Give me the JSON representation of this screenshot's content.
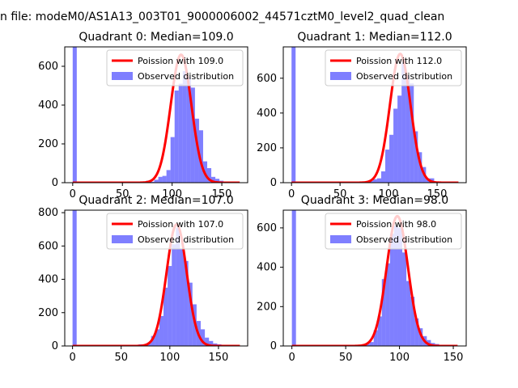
{
  "figure": {
    "suptitle": "n file: modeM0/AS1A13_003T01_9000006002_44571cztM0_level2_quad_clean"
  },
  "colors": {
    "bars": "#0000ff",
    "bars_opacity": 0.5,
    "poisson": "#ff0000"
  },
  "chart_data": [
    {
      "type": "bar",
      "title": "Quadrant 0: Median=109.0",
      "xlabel": "",
      "ylabel": "",
      "xlim": [
        -8.0,
        176.0
      ],
      "ylim": [
        0,
        700
      ],
      "xticks": [
        0,
        50,
        100,
        150
      ],
      "yticks": [
        0,
        200,
        400,
        600
      ],
      "legend_position": "top-right",
      "bin_width": 4.1,
      "series": [
        {
          "name": "Observed distribution",
          "bins": [
            0,
            4.1,
            8.2,
            12.3,
            16.4,
            20.5,
            24.6,
            28.7,
            32.8,
            36.9,
            41.0,
            45.1,
            49.2,
            53.3,
            57.4,
            61.5,
            65.6,
            69.7,
            73.8,
            77.9,
            82.0,
            86.1,
            90.2,
            94.3,
            98.4,
            102.5,
            106.6,
            110.7,
            114.8,
            118.9,
            123.0,
            127.1,
            131.2,
            135.3,
            139.4,
            143.5,
            147.6,
            151.7,
            155.8,
            159.9
          ],
          "values": [
            700,
            0,
            0,
            0,
            0,
            0,
            0,
            0,
            0,
            0,
            0,
            0,
            0,
            0,
            0,
            0,
            0,
            0,
            10,
            5,
            15,
            30,
            35,
            65,
            235,
            475,
            510,
            575,
            545,
            490,
            330,
            270,
            110,
            75,
            30,
            20,
            10,
            5,
            3,
            0
          ]
        },
        {
          "name": "Poission with 109.0",
          "lambda": 109.0,
          "peak": 660
        }
      ]
    },
    {
      "type": "bar",
      "title": "Quadrant 1: Median=112.0",
      "xlabel": "",
      "ylabel": "",
      "xlim": [
        -8.5,
        180.0
      ],
      "ylim": [
        0,
        780
      ],
      "xticks": [
        0,
        50,
        100,
        150
      ],
      "yticks": [
        0,
        200,
        400,
        600
      ],
      "legend_position": "top-right",
      "bin_width": 4.2,
      "series": [
        {
          "name": "Observed distribution",
          "bins": [
            0,
            4.2,
            8.4,
            12.6,
            16.8,
            21.0,
            25.2,
            29.4,
            33.6,
            37.8,
            42.0,
            46.2,
            50.4,
            54.6,
            58.8,
            63.0,
            67.2,
            71.4,
            75.6,
            79.8,
            84.0,
            88.2,
            92.4,
            96.6,
            100.8,
            105.0,
            109.2,
            113.4,
            117.6,
            121.8,
            126.0,
            130.2,
            134.4,
            138.6,
            142.8,
            147.0,
            151.2,
            155.4,
            159.6,
            163.8
          ],
          "values": [
            780,
            0,
            0,
            0,
            0,
            0,
            0,
            0,
            0,
            0,
            0,
            0,
            0,
            0,
            0,
            0,
            0,
            0,
            5,
            10,
            20,
            25,
            65,
            190,
            275,
            425,
            500,
            690,
            615,
            570,
            295,
            175,
            90,
            25,
            25,
            5,
            5,
            3,
            0,
            0
          ]
        },
        {
          "name": "Poission with 112.0",
          "lambda": 112.0,
          "peak": 740
        }
      ]
    },
    {
      "type": "bar",
      "title": "Quadrant 2: Median=107.0",
      "xlabel": "",
      "ylabel": "",
      "xlim": [
        -8.0,
        180.0
      ],
      "ylim": [
        0,
        815
      ],
      "xticks": [
        0,
        50,
        100,
        150
      ],
      "yticks": [
        0,
        200,
        400,
        600,
        800
      ],
      "legend_position": "top-right",
      "bin_width": 4.25,
      "series": [
        {
          "name": "Observed distribution",
          "bins": [
            0,
            4.25,
            8.5,
            12.75,
            17.0,
            21.25,
            25.5,
            29.75,
            34.0,
            38.25,
            42.5,
            46.75,
            51.0,
            55.25,
            59.5,
            63.75,
            68.0,
            72.25,
            76.5,
            80.75,
            85.0,
            89.25,
            93.5,
            97.75,
            102.0,
            106.25,
            110.5,
            114.75,
            119.0,
            123.25,
            127.5,
            131.75,
            136.0,
            140.25,
            144.5,
            148.75,
            153.0,
            157.25,
            161.5,
            165.75
          ],
          "values": [
            815,
            0,
            0,
            0,
            0,
            0,
            0,
            0,
            0,
            0,
            0,
            0,
            0,
            0,
            0,
            0,
            10,
            0,
            20,
            60,
            100,
            180,
            350,
            480,
            610,
            710,
            580,
            510,
            380,
            250,
            150,
            100,
            50,
            30,
            15,
            10,
            5,
            2,
            0,
            0
          ]
        },
        {
          "name": "Poission with 107.0",
          "lambda": 107.0,
          "peak": 730
        }
      ]
    },
    {
      "type": "bar",
      "title": "Quadrant 3: Median=98.0",
      "xlabel": "",
      "ylabel": "",
      "xlim": [
        -8.0,
        162.0
      ],
      "ylim": [
        0,
        690
      ],
      "xticks": [
        0,
        50,
        100,
        150
      ],
      "yticks": [
        0,
        200,
        400,
        600
      ],
      "legend_position": "top-right",
      "bin_width": 3.8,
      "series": [
        {
          "name": "Observed distribution",
          "bins": [
            0,
            3.8,
            7.6,
            11.4,
            15.2,
            19.0,
            22.8,
            26.6,
            30.4,
            34.2,
            38.0,
            41.8,
            45.6,
            49.4,
            53.2,
            57.0,
            60.8,
            64.6,
            68.4,
            72.2,
            76.0,
            79.8,
            83.6,
            87.4,
            91.2,
            95.0,
            98.8,
            102.6,
            106.4,
            110.2,
            114.0,
            117.8,
            121.6,
            125.4,
            129.2,
            133.0,
            136.8,
            140.6,
            144.4,
            148.2
          ],
          "values": [
            690,
            0,
            0,
            0,
            0,
            0,
            0,
            0,
            0,
            0,
            0,
            0,
            0,
            0,
            0,
            0,
            0,
            5,
            10,
            20,
            80,
            150,
            340,
            420,
            570,
            610,
            600,
            475,
            330,
            250,
            140,
            90,
            50,
            30,
            15,
            10,
            5,
            2,
            0,
            0
          ]
        },
        {
          "name": "Poission with 98.0",
          "lambda": 98.0,
          "peak": 660
        }
      ]
    }
  ]
}
